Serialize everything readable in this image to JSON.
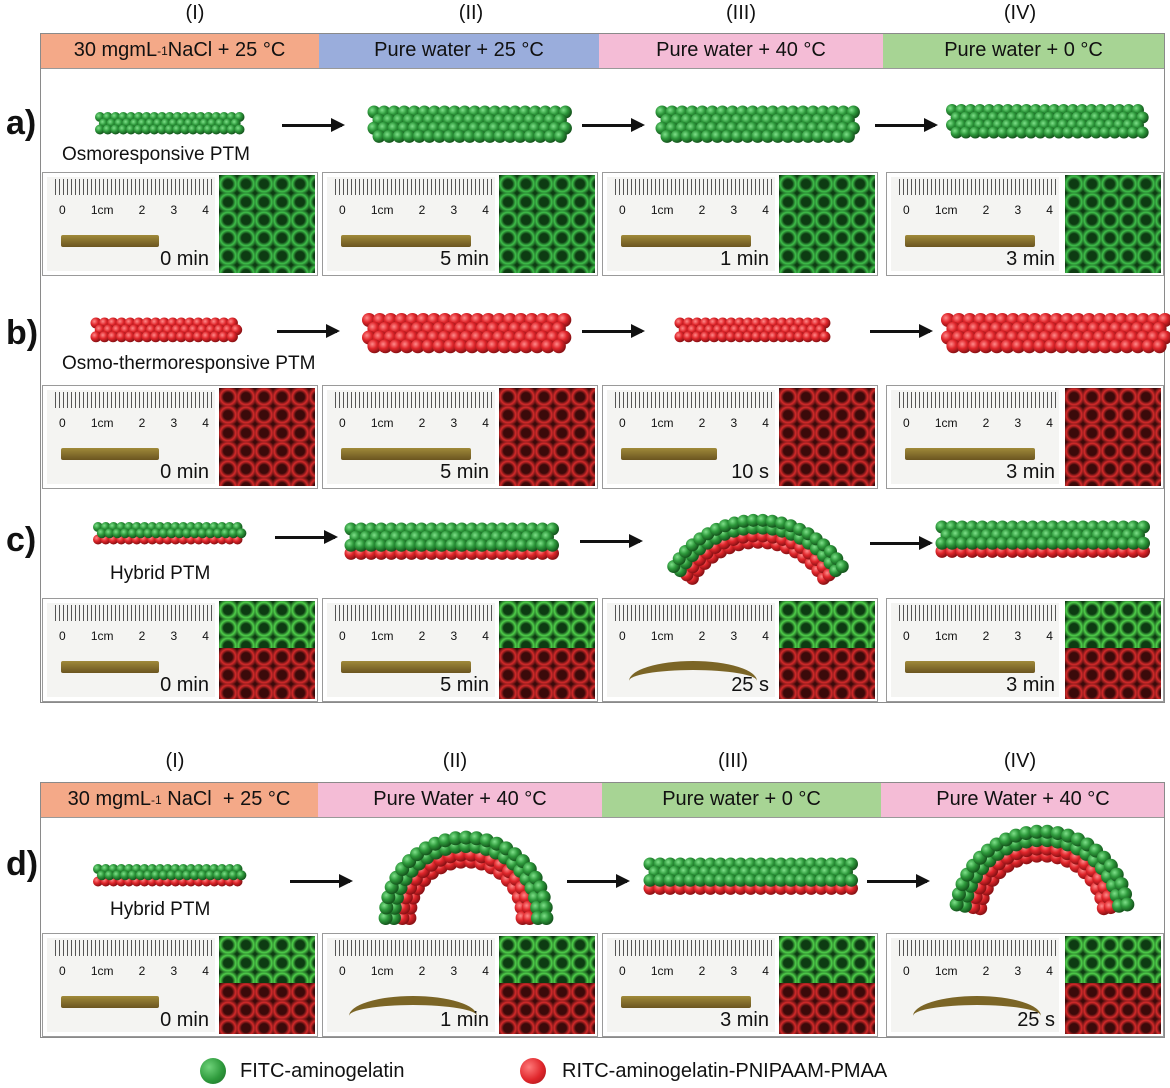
{
  "top": {
    "romans": [
      "(I)",
      "(II)",
      "(III)",
      "(IV)"
    ],
    "headers": [
      {
        "text_pre": "30 mgmL",
        "sup": "-1",
        "text_post": " NaCl + 25 °C",
        "color": "#f4a988"
      },
      {
        "text": "Pure water + 25 °C",
        "color": "#9aaddc"
      },
      {
        "text": "Pure water + 40 °C",
        "color": "#f4bcd6"
      },
      {
        "text": "Pure water + 0 °C",
        "color": "#a7d494"
      }
    ]
  },
  "rows": [
    {
      "label": "a)",
      "caption": "Osmoresponsive PTM",
      "times": [
        "0 min",
        "5 min",
        "1 min",
        "3 min"
      ]
    },
    {
      "label": "b)",
      "caption": "Osmo-thermoresponsive PTM",
      "times": [
        "0 min",
        "5 min",
        "10 s",
        "3 min"
      ]
    },
    {
      "label": "c)",
      "caption": "Hybrid PTM",
      "times": [
        "0 min",
        "5 min",
        "25 s",
        "3 min"
      ]
    }
  ],
  "bottom": {
    "romans": [
      "(I)",
      "(II)",
      "(III)",
      "(IV)"
    ],
    "headers": [
      {
        "text_pre": "30 mgmL",
        "sup": "-1",
        "text_post": " NaCl  + 25 °C",
        "color": "#f4a988"
      },
      {
        "text": "Pure Water + 40 °C",
        "color": "#f4bcd6"
      },
      {
        "text": "Pure water + 0 °C",
        "color": "#a7d494"
      },
      {
        "text": "Pure Water + 40 °C",
        "color": "#f4bcd6"
      }
    ],
    "row": {
      "label": "d)",
      "caption": "Hybrid PTM",
      "times": [
        "0 min",
        "1 min",
        "3 min",
        "25 s"
      ]
    }
  },
  "ruler": {
    "ticks": [
      "0",
      "1cm",
      "2",
      "3",
      "4"
    ]
  },
  "legend": {
    "green_label": "FITC-aminogelatin",
    "red_label": "RITC-aminogelatin-PNIPAAM-PMAA",
    "green_color": "#2e9a3c",
    "red_color": "#e0262b"
  }
}
